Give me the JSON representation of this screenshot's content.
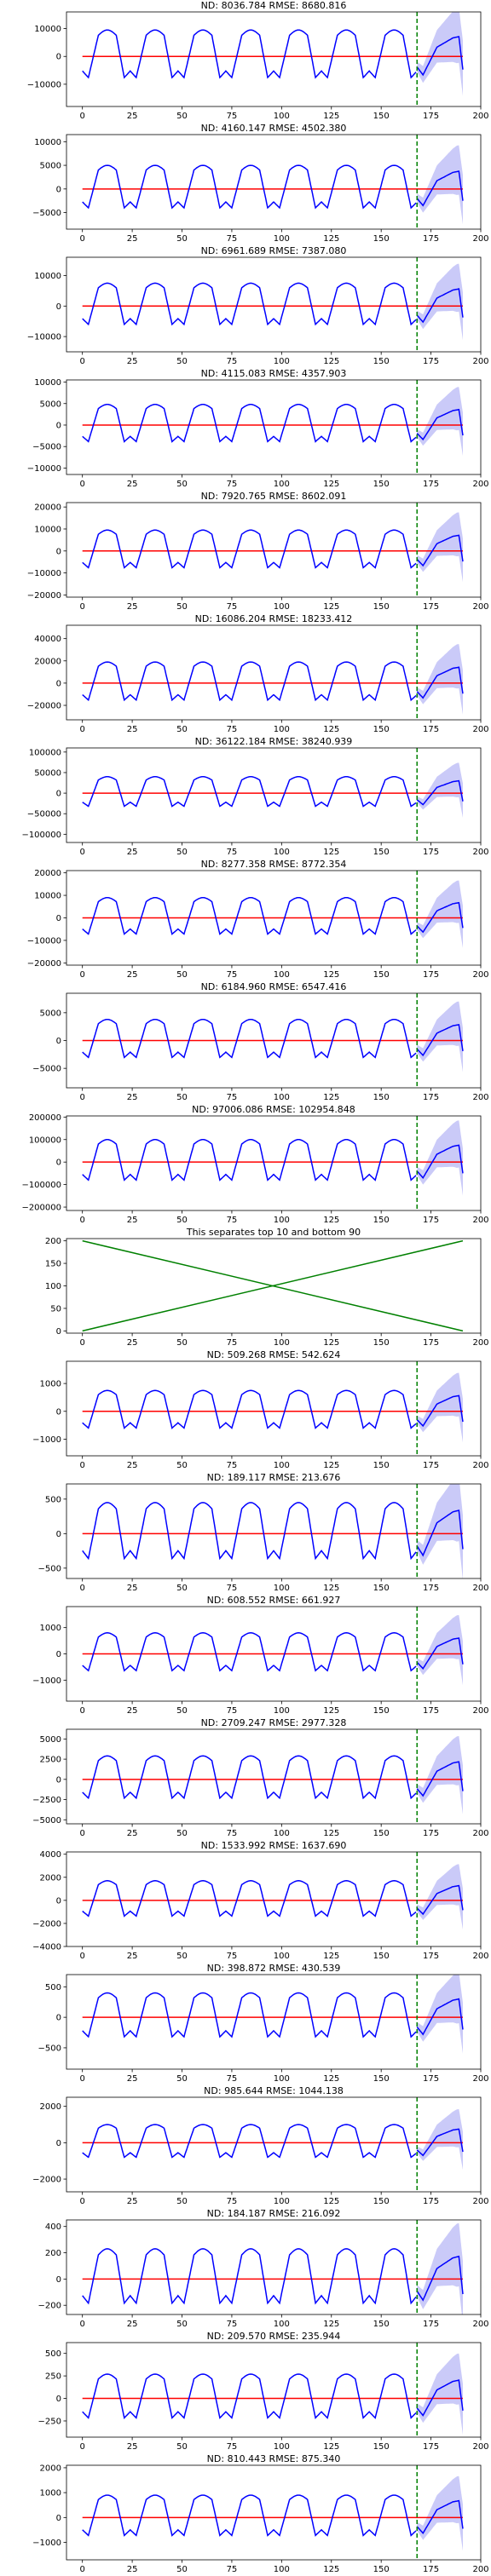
{
  "chart_data": [
    {
      "type": "line",
      "title": "ND:  8036.784 RMSE:  8680.816",
      "ylim": [
        -18000,
        16000
      ],
      "yticks": [
        -10000,
        0,
        10000
      ],
      "ytick_labels": [
        "−10000",
        "0",
        "10000"
      ],
      "amp": 9500
    },
    {
      "type": "line",
      "title": "ND:  4160.147 RMSE:  4502.380",
      "ylim": [
        -8500,
        11500
      ],
      "yticks": [
        -5000,
        0,
        5000,
        10000
      ],
      "ytick_labels": [
        "−5000",
        "0",
        "5000",
        "10000"
      ],
      "amp": 5000
    },
    {
      "type": "line",
      "title": "ND:  6961.689 RMSE:  7387.080",
      "ylim": [
        -15000,
        16000
      ],
      "yticks": [
        -10000,
        0,
        10000
      ],
      "ytick_labels": [
        "−10000",
        "0",
        "10000"
      ],
      "amp": 7500
    },
    {
      "type": "line",
      "title": "ND:  4115.083 RMSE:  4357.903",
      "ylim": [
        -11500,
        10500
      ],
      "yticks": [
        -10000,
        -5000,
        0,
        5000,
        10000
      ],
      "ytick_labels": [
        "−10000",
        "−5000",
        "0",
        "5000",
        "10000"
      ],
      "amp": 4800
    },
    {
      "type": "line",
      "title": "ND:  7920.765 RMSE:  8602.091",
      "ylim": [
        -21000,
        22000
      ],
      "yticks": [
        -20000,
        -10000,
        0,
        10000,
        20000
      ],
      "ytick_labels": [
        "−20000",
        "−10000",
        "0",
        "10000",
        "20000"
      ],
      "amp": 9500
    },
    {
      "type": "line",
      "title": "ND:  16086.204 RMSE:  18233.412",
      "ylim": [
        -33000,
        52000
      ],
      "yticks": [
        -20000,
        0,
        20000,
        40000
      ],
      "ytick_labels": [
        "−20000",
        "0",
        "20000",
        "40000"
      ],
      "amp": 19000
    },
    {
      "type": "line",
      "title": "ND:  36122.184 RMSE:  38240.939",
      "ylim": [
        -120000,
        110000
      ],
      "yticks": [
        -100000,
        -50000,
        0,
        50000,
        100000
      ],
      "ytick_labels": [
        "−100000",
        "−50000",
        "0",
        "50000",
        "100000"
      ],
      "amp": 40000
    },
    {
      "type": "line",
      "title": "ND:  8277.358 RMSE:  8772.354",
      "ylim": [
        -21000,
        21000
      ],
      "yticks": [
        -20000,
        -10000,
        0,
        10000,
        20000
      ],
      "ytick_labels": [
        "−20000",
        "−10000",
        "0",
        "10000",
        "20000"
      ],
      "amp": 9000
    },
    {
      "type": "line",
      "title": "ND:  6184.960 RMSE:  6547.416",
      "ylim": [
        -8500,
        8500
      ],
      "yticks": [
        -5000,
        0,
        5000
      ],
      "ytick_labels": [
        "−5000",
        "0",
        "5000"
      ],
      "amp": 3800
    },
    {
      "type": "line",
      "title": "ND:  97006.086 RMSE:  102954.848",
      "ylim": [
        -215000,
        205000
      ],
      "yticks": [
        -200000,
        -100000,
        0,
        100000,
        200000
      ],
      "ytick_labels": [
        "−200000",
        "−100000",
        "0",
        "100000",
        "200000"
      ],
      "amp": 100000
    },
    {
      "type": "separator",
      "title": "This separates top 10 and bottom 90",
      "ylim": [
        -5,
        205
      ],
      "yticks": [
        0,
        50,
        100,
        150,
        200
      ],
      "ytick_labels": [
        "0",
        "50",
        "100",
        "150",
        "200"
      ]
    },
    {
      "type": "line",
      "title": "ND:  509.268 RMSE:  542.624",
      "ylim": [
        -1600,
        1800
      ],
      "yticks": [
        -1000,
        0,
        1000
      ],
      "ytick_labels": [
        "−1000",
        "0",
        "1000"
      ],
      "amp": 750
    },
    {
      "type": "line",
      "title": "ND:  189.117 RMSE:  213.676",
      "ylim": [
        -650,
        720
      ],
      "yticks": [
        -500,
        0,
        500
      ],
      "ytick_labels": [
        "−500",
        "0",
        "500"
      ],
      "amp": 450
    },
    {
      "type": "line",
      "title": "ND:  608.552 RMSE:  661.927",
      "ylim": [
        -1800,
        1800
      ],
      "yticks": [
        -1000,
        0,
        1000
      ],
      "ytick_labels": [
        "−1000",
        "0",
        "1000"
      ],
      "amp": 800
    },
    {
      "type": "line",
      "title": "ND:  2709.247 RMSE:  2977.328",
      "ylim": [
        -5500,
        6200
      ],
      "yticks": [
        -5000,
        -2500,
        0,
        2500,
        5000
      ],
      "ytick_labels": [
        "−5000",
        "−2500",
        "0",
        "2500",
        "5000"
      ],
      "amp": 2900
    },
    {
      "type": "line",
      "title": "ND:  1533.992 RMSE:  1637.690",
      "ylim": [
        -4000,
        4200
      ],
      "yticks": [
        -4000,
        -2000,
        0,
        2000,
        4000
      ],
      "ytick_labels": [
        "−4000",
        "−2000",
        "0",
        "2000",
        "4000"
      ],
      "amp": 1700
    },
    {
      "type": "line",
      "title": "ND:  398.872 RMSE:  430.539",
      "ylim": [
        -850,
        700
      ],
      "yticks": [
        -500,
        0,
        500
      ],
      "ytick_labels": [
        "−500",
        "0",
        "500"
      ],
      "amp": 400
    },
    {
      "type": "line",
      "title": "ND:  985.644 RMSE:  1044.138",
      "ylim": [
        -2700,
        2500
      ],
      "yticks": [
        -2000,
        0,
        2000
      ],
      "ytick_labels": [
        "−2000",
        "0",
        "2000"
      ],
      "amp": 1000
    },
    {
      "type": "line",
      "title": "ND:  184.187 RMSE:  216.092",
      "ylim": [
        -270,
        450
      ],
      "yticks": [
        -200,
        0,
        200,
        400
      ],
      "ytick_labels": [
        "−200",
        "0",
        "200",
        "400"
      ],
      "amp": 230
    },
    {
      "type": "line",
      "title": "ND:  209.570 RMSE:  235.944",
      "ylim": [
        -430,
        620
      ],
      "yticks": [
        -250,
        0,
        250,
        500
      ],
      "ytick_labels": [
        "−250",
        "0",
        "250",
        "500"
      ],
      "amp": 270
    },
    {
      "type": "line",
      "title": "ND:  810.443 RMSE:  875.340",
      "ylim": [
        -1700,
        2100
      ],
      "yticks": [
        -1000,
        0,
        1000,
        2000
      ],
      "ytick_labels": [
        "−1000",
        "0",
        "1000",
        "2000"
      ],
      "amp": 900
    }
  ],
  "xlim": [
    -8,
    200
  ],
  "xticks": [
    0,
    25,
    50,
    75,
    100,
    125,
    150,
    175,
    200
  ],
  "xtick_labels": [
    "0",
    "25",
    "50",
    "75",
    "100",
    "125",
    "150",
    "175",
    "200"
  ],
  "forecast_start": 168,
  "series_end": 191,
  "colors": {
    "actual": "#0000ff",
    "baseline": "#ff0000",
    "band": "#b8b8f5",
    "divider": "#008000",
    "separator": "#008000"
  }
}
